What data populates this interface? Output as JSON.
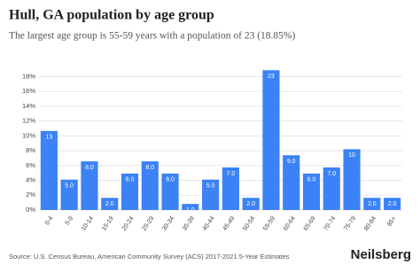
{
  "chart_data": {
    "type": "bar",
    "title": "Hull, GA population by age group",
    "subtitle": "The largest age group is 55-59 years with a population of 23 (18.85%)",
    "categories": [
      "0-4",
      "5-9",
      "10-14",
      "15-19",
      "20-24",
      "25-29",
      "30-34",
      "35-39",
      "40-44",
      "45-49",
      "50-54",
      "55-59",
      "60-64",
      "65-69",
      "70-74",
      "75-79",
      "80-84",
      "85+"
    ],
    "values": [
      10.66,
      4.1,
      6.56,
      1.64,
      4.92,
      6.56,
      4.92,
      0.82,
      4.1,
      5.74,
      1.64,
      18.85,
      7.38,
      4.92,
      5.74,
      8.2,
      1.64,
      1.64
    ],
    "bar_labels": [
      "13",
      "5.0",
      "8.0",
      "2.0",
      "6.0",
      "8.0",
      "6.0",
      "1.0",
      "5.0",
      "7.0",
      "2.0",
      "23",
      "9.0",
      "6.0",
      "7.0",
      "10",
      "2.0",
      "2.0"
    ],
    "color": "#3b82f6",
    "ylim": [
      0,
      19
    ],
    "yticks": [
      {
        "value": 0,
        "label": "0%"
      },
      {
        "value": 2,
        "label": "2%"
      },
      {
        "value": 4,
        "label": "4%"
      },
      {
        "value": 6,
        "label": "6%"
      },
      {
        "value": 8,
        "label": "8%"
      },
      {
        "value": 10,
        "label": "10%"
      },
      {
        "value": 12,
        "label": "12%"
      },
      {
        "value": 14,
        "label": "14%"
      },
      {
        "value": 16,
        "label": "16%"
      },
      {
        "value": 18,
        "label": "18%"
      }
    ],
    "grid": true,
    "source": "Source: U.S. Census Bureau, American Community Survey (ACS) 2017-2021 5-Year Estimates",
    "brand": "Neilsberg"
  }
}
